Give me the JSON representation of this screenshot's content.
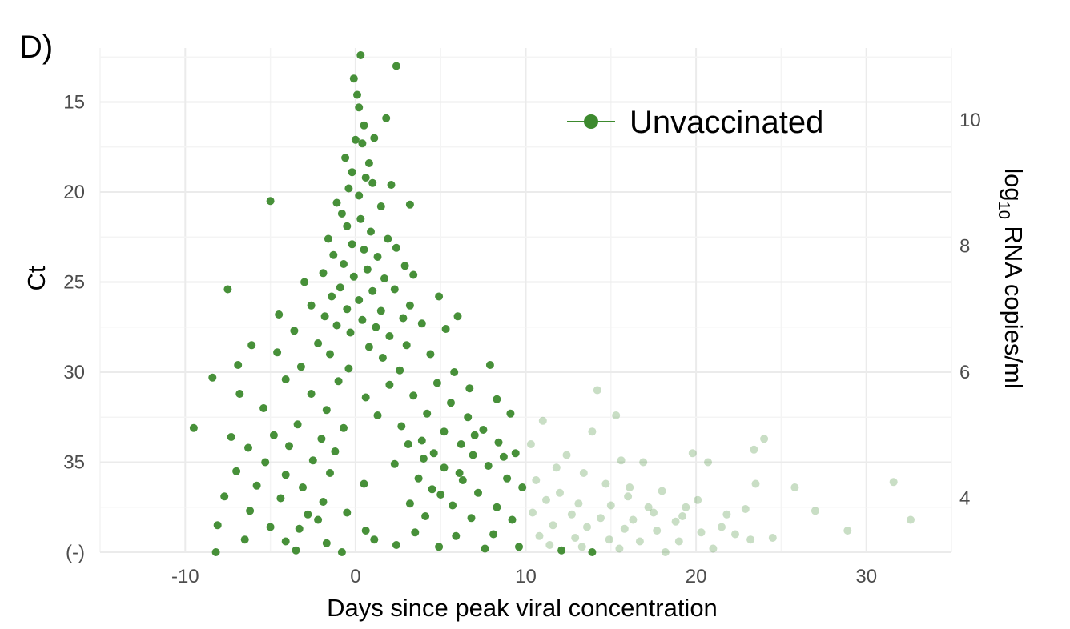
{
  "panel_label": "D)",
  "chart_data": {
    "type": "scatter",
    "title": "",
    "xlabel": "Days since peak viral concentration",
    "ylabel": "Ct",
    "ylabel_right_main": "log",
    "ylabel_right_sub": "10",
    "ylabel_right_rest": " RNA copies/ml",
    "xlim": [
      -15,
      35
    ],
    "ylim": [
      12,
      40
    ],
    "y_inverted": true,
    "grid": true,
    "legend_position": "top-right",
    "x_ticks": [
      {
        "value": -10,
        "label": "-10"
      },
      {
        "value": 0,
        "label": "0"
      },
      {
        "value": 10,
        "label": "10"
      },
      {
        "value": 20,
        "label": "20"
      },
      {
        "value": 30,
        "label": "30"
      }
    ],
    "y_ticks": [
      {
        "value": 15,
        "label": "15"
      },
      {
        "value": 20,
        "label": "20"
      },
      {
        "value": 25,
        "label": "25"
      },
      {
        "value": 30,
        "label": "30"
      },
      {
        "value": 35,
        "label": "35"
      },
      {
        "value": 40,
        "label": "(-)"
      }
    ],
    "y2_ticks": [
      {
        "value": 10,
        "label": "10"
      },
      {
        "value": 8,
        "label": "8"
      },
      {
        "value": 6,
        "label": "6"
      },
      {
        "value": 4,
        "label": "4"
      }
    ],
    "y2_ct_mapping": {
      "ct_at": [
        16,
        37
      ],
      "log10_at": [
        10,
        4
      ]
    },
    "series": [
      {
        "name": "Unvaccinated",
        "color": "#3d8a2e",
        "legend": true,
        "opacity": 0.95,
        "points": [
          [
            0.3,
            12.4
          ],
          [
            2.4,
            13.0
          ],
          [
            -0.1,
            13.7
          ],
          [
            0.1,
            14.6
          ],
          [
            0.2,
            15.3
          ],
          [
            1.8,
            15.9
          ],
          [
            0.5,
            16.3
          ],
          [
            0.0,
            17.1
          ],
          [
            0.4,
            17.3
          ],
          [
            1.1,
            17.0
          ],
          [
            -0.6,
            18.1
          ],
          [
            0.8,
            18.4
          ],
          [
            -0.2,
            18.9
          ],
          [
            0.6,
            19.2
          ],
          [
            1.0,
            19.5
          ],
          [
            -0.4,
            19.8
          ],
          [
            0.2,
            20.2
          ],
          [
            2.1,
            19.6
          ],
          [
            -1.1,
            20.6
          ],
          [
            -5.0,
            20.5
          ],
          [
            1.5,
            20.8
          ],
          [
            -0.8,
            21.2
          ],
          [
            0.3,
            21.5
          ],
          [
            3.2,
            20.7
          ],
          [
            -0.5,
            21.9
          ],
          [
            0.9,
            22.2
          ],
          [
            -1.6,
            22.6
          ],
          [
            1.9,
            22.6
          ],
          [
            -0.2,
            22.9
          ],
          [
            0.5,
            23.2
          ],
          [
            2.4,
            23.1
          ],
          [
            -1.3,
            23.5
          ],
          [
            1.3,
            23.6
          ],
          [
            -0.7,
            24.0
          ],
          [
            0.7,
            24.3
          ],
          [
            2.9,
            24.1
          ],
          [
            -1.9,
            24.5
          ],
          [
            -0.1,
            24.7
          ],
          [
            1.7,
            24.8
          ],
          [
            3.4,
            24.6
          ],
          [
            -3.0,
            25.0
          ],
          [
            -0.9,
            25.3
          ],
          [
            1.0,
            25.5
          ],
          [
            2.3,
            25.4
          ],
          [
            -7.5,
            25.4
          ],
          [
            -1.4,
            25.8
          ],
          [
            0.2,
            26.0
          ],
          [
            4.9,
            25.8
          ],
          [
            -2.6,
            26.3
          ],
          [
            -0.5,
            26.5
          ],
          [
            1.5,
            26.6
          ],
          [
            3.2,
            26.3
          ],
          [
            -4.5,
            26.8
          ],
          [
            -1.8,
            26.9
          ],
          [
            0.4,
            27.1
          ],
          [
            2.8,
            27.0
          ],
          [
            6.0,
            26.9
          ],
          [
            -1.1,
            27.4
          ],
          [
            1.2,
            27.5
          ],
          [
            3.9,
            27.3
          ],
          [
            -3.6,
            27.7
          ],
          [
            -0.3,
            27.8
          ],
          [
            2.0,
            28.0
          ],
          [
            5.3,
            27.6
          ],
          [
            -6.1,
            28.5
          ],
          [
            -2.2,
            28.4
          ],
          [
            0.8,
            28.6
          ],
          [
            3.0,
            28.5
          ],
          [
            -4.6,
            28.9
          ],
          [
            -1.5,
            29.0
          ],
          [
            1.6,
            29.2
          ],
          [
            4.4,
            29.0
          ],
          [
            7.9,
            29.6
          ],
          [
            -6.9,
            29.6
          ],
          [
            -3.2,
            29.7
          ],
          [
            -0.4,
            29.8
          ],
          [
            2.6,
            29.9
          ],
          [
            5.8,
            30.0
          ],
          [
            -8.4,
            30.3
          ],
          [
            -4.1,
            30.4
          ],
          [
            -1.0,
            30.5
          ],
          [
            2.0,
            30.7
          ],
          [
            4.8,
            30.6
          ],
          [
            6.7,
            30.9
          ],
          [
            -6.8,
            31.2
          ],
          [
            -2.6,
            31.2
          ],
          [
            0.6,
            31.4
          ],
          [
            3.4,
            31.3
          ],
          [
            5.6,
            31.7
          ],
          [
            8.3,
            31.5
          ],
          [
            -5.4,
            32.0
          ],
          [
            -1.7,
            32.1
          ],
          [
            1.3,
            32.4
          ],
          [
            4.2,
            32.3
          ],
          [
            6.6,
            32.5
          ],
          [
            9.1,
            32.3
          ],
          [
            -9.5,
            33.1
          ],
          [
            -3.4,
            32.9
          ],
          [
            -0.7,
            33.1
          ],
          [
            2.7,
            33.0
          ],
          [
            5.2,
            33.3
          ],
          [
            7.5,
            33.2
          ],
          [
            -7.3,
            33.6
          ],
          [
            -4.8,
            33.5
          ],
          [
            -2.0,
            33.7
          ],
          [
            3.9,
            33.8
          ],
          [
            6.2,
            34.0
          ],
          [
            8.4,
            33.9
          ],
          [
            -6.3,
            34.2
          ],
          [
            -3.9,
            34.1
          ],
          [
            -1.2,
            34.4
          ],
          [
            4.6,
            34.5
          ],
          [
            6.9,
            34.6
          ],
          [
            9.4,
            34.5
          ],
          [
            -5.3,
            35.0
          ],
          [
            -2.5,
            34.9
          ],
          [
            2.3,
            35.1
          ],
          [
            5.2,
            35.3
          ],
          [
            7.8,
            35.2
          ],
          [
            -7.0,
            35.5
          ],
          [
            -4.1,
            35.7
          ],
          [
            -1.5,
            35.6
          ],
          [
            3.7,
            35.9
          ],
          [
            6.3,
            36.0
          ],
          [
            8.9,
            35.9
          ],
          [
            -5.8,
            36.3
          ],
          [
            -3.1,
            36.4
          ],
          [
            0.5,
            36.2
          ],
          [
            4.5,
            36.5
          ],
          [
            7.2,
            36.7
          ],
          [
            9.8,
            36.4
          ],
          [
            -7.7,
            36.9
          ],
          [
            -4.4,
            37.0
          ],
          [
            -1.9,
            37.2
          ],
          [
            3.2,
            37.3
          ],
          [
            5.7,
            37.4
          ],
          [
            8.3,
            37.5
          ],
          [
            -6.2,
            37.7
          ],
          [
            -2.8,
            37.9
          ],
          [
            -0.5,
            37.8
          ],
          [
            4.1,
            38.0
          ],
          [
            6.8,
            38.1
          ],
          [
            9.2,
            38.2
          ],
          [
            -8.1,
            38.5
          ],
          [
            -5.0,
            38.6
          ],
          [
            -3.3,
            38.7
          ],
          [
            0.6,
            38.8
          ],
          [
            3.5,
            38.9
          ],
          [
            5.9,
            39.1
          ],
          [
            8.1,
            39.0
          ],
          [
            -6.5,
            39.3
          ],
          [
            -4.1,
            39.4
          ],
          [
            -1.7,
            39.5
          ],
          [
            2.4,
            39.6
          ],
          [
            4.9,
            39.7
          ],
          [
            7.6,
            39.8
          ],
          [
            9.6,
            39.7
          ],
          [
            -8.2,
            40.0
          ],
          [
            -3.5,
            39.9
          ],
          [
            -0.8,
            40.0
          ],
          [
            12.1,
            39.9
          ],
          [
            13.9,
            40.0
          ],
          [
            1.1,
            39.3
          ],
          [
            -2.2,
            38.2
          ],
          [
            5.0,
            36.8
          ],
          [
            6.1,
            35.6
          ],
          [
            4.0,
            34.8
          ],
          [
            3.1,
            34.0
          ],
          [
            7.0,
            33.5
          ],
          [
            8.7,
            34.7
          ]
        ]
      },
      {
        "name": "",
        "color": "#3d8a2e",
        "legend": false,
        "opacity": 0.28,
        "points": [
          [
            14.2,
            31.0
          ],
          [
            15.3,
            32.4
          ],
          [
            11.0,
            32.7
          ],
          [
            13.9,
            33.3
          ],
          [
            10.3,
            34.0
          ],
          [
            12.4,
            34.6
          ],
          [
            15.6,
            34.9
          ],
          [
            16.9,
            35.0
          ],
          [
            11.8,
            35.3
          ],
          [
            13.4,
            35.6
          ],
          [
            10.6,
            36.0
          ],
          [
            14.7,
            36.2
          ],
          [
            16.1,
            36.4
          ],
          [
            12.0,
            36.7
          ],
          [
            18.0,
            36.6
          ],
          [
            11.2,
            37.1
          ],
          [
            13.1,
            37.3
          ],
          [
            15.0,
            37.4
          ],
          [
            17.2,
            37.5
          ],
          [
            19.4,
            37.5
          ],
          [
            10.4,
            37.8
          ],
          [
            12.7,
            37.9
          ],
          [
            14.4,
            38.1
          ],
          [
            16.3,
            38.2
          ],
          [
            18.8,
            38.3
          ],
          [
            11.6,
            38.5
          ],
          [
            13.6,
            38.6
          ],
          [
            15.8,
            38.7
          ],
          [
            17.7,
            38.8
          ],
          [
            20.3,
            38.9
          ],
          [
            10.8,
            39.1
          ],
          [
            12.9,
            39.2
          ],
          [
            14.9,
            39.3
          ],
          [
            16.7,
            39.4
          ],
          [
            19.0,
            39.4
          ],
          [
            11.4,
            39.6
          ],
          [
            13.3,
            39.7
          ],
          [
            15.5,
            39.8
          ],
          [
            18.2,
            40.0
          ],
          [
            21.0,
            39.8
          ],
          [
            19.8,
            34.5
          ],
          [
            20.7,
            35.0
          ],
          [
            23.4,
            34.3
          ],
          [
            24.0,
            33.7
          ],
          [
            23.5,
            36.2
          ],
          [
            22.9,
            37.6
          ],
          [
            25.8,
            36.4
          ],
          [
            27.0,
            37.7
          ],
          [
            21.5,
            38.6
          ],
          [
            22.3,
            39.0
          ],
          [
            23.2,
            39.3
          ],
          [
            24.5,
            39.2
          ],
          [
            28.9,
            38.8
          ],
          [
            31.6,
            36.1
          ],
          [
            32.6,
            38.2
          ],
          [
            20.1,
            37.1
          ],
          [
            19.2,
            38.0
          ],
          [
            21.8,
            37.9
          ],
          [
            17.5,
            37.8
          ],
          [
            16.0,
            36.9
          ]
        ]
      }
    ]
  }
}
